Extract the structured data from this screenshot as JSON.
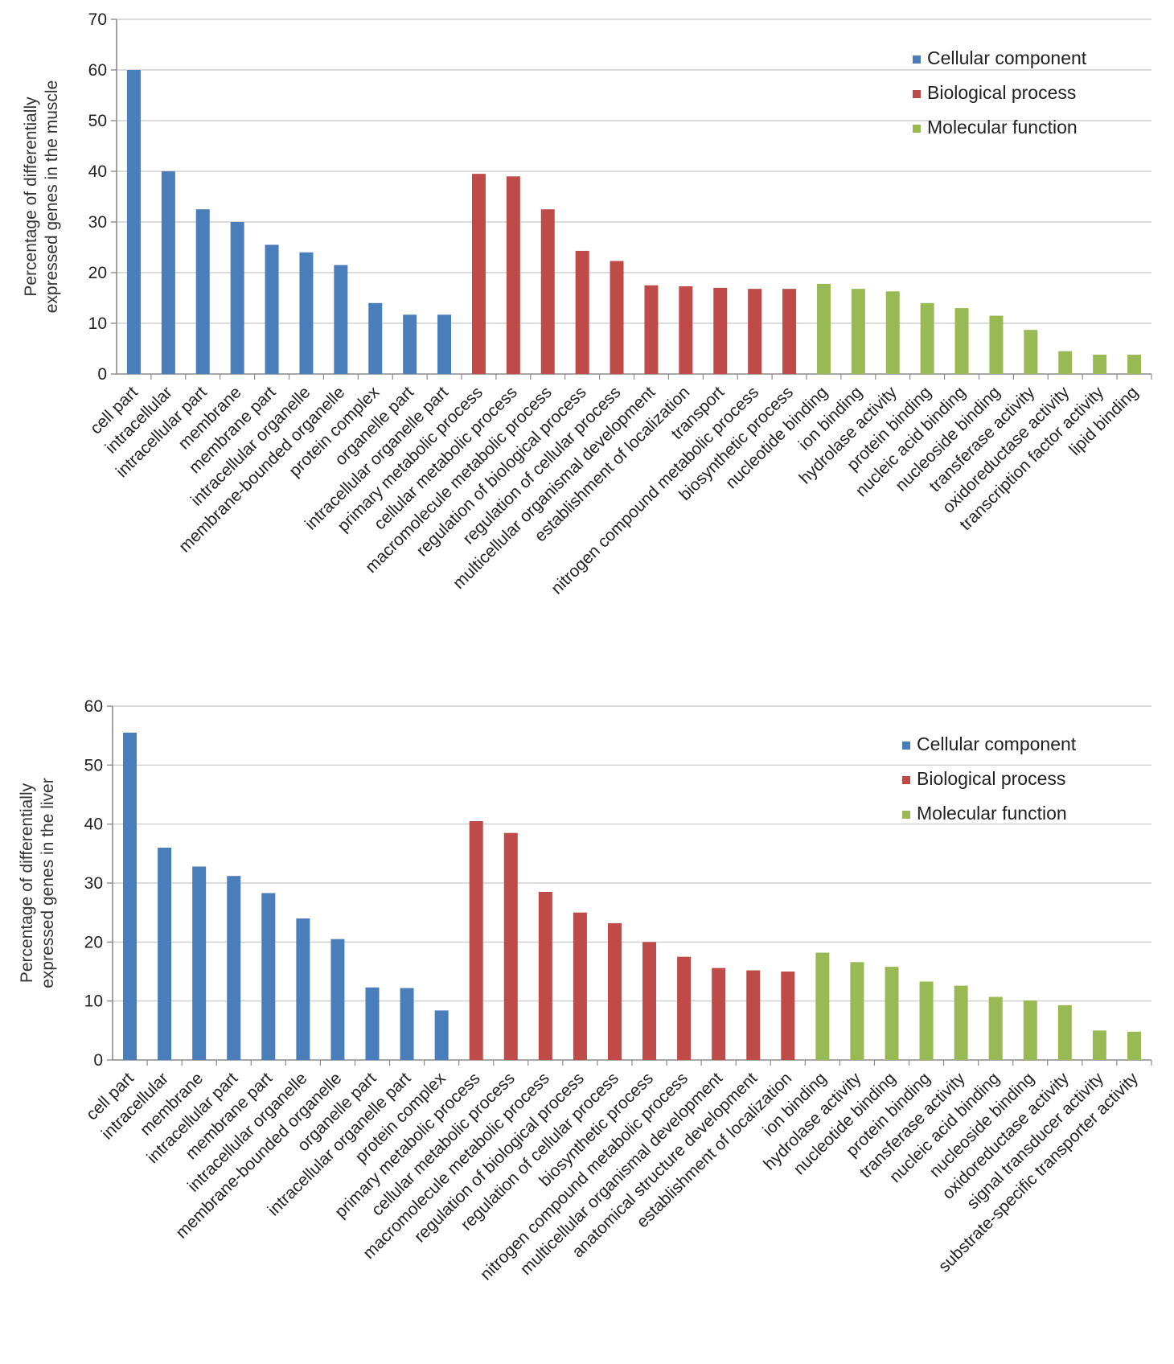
{
  "colors": {
    "cellular": "#4a7ebb",
    "biological": "#be4b48",
    "molecular": "#98b954",
    "grid": "#c8c8c8",
    "axis": "#8c8c8c"
  },
  "chart_data": [
    {
      "type": "bar",
      "id": "muscle",
      "ylabel_lines": [
        "Percentage of differentially",
        "expressed genes in the muscle"
      ],
      "ylim": [
        0,
        70
      ],
      "yticks": [
        0,
        10,
        20,
        30,
        40,
        50,
        60,
        70
      ],
      "legend": [
        {
          "label": "Cellular component",
          "color_key": "cellular"
        },
        {
          "label": "Biological process",
          "color_key": "biological"
        },
        {
          "label": "Molecular function",
          "color_key": "molecular"
        }
      ],
      "legend_position": "top-right",
      "categories": [
        "cell part",
        "intracellular",
        "intracellular part",
        "membrane",
        "membrane part",
        "intracellular organelle",
        "membrane-bounded organelle",
        "protein complex",
        "organelle part",
        "intracellular organelle part",
        "primary metabolic process",
        "cellular metabolic process",
        "macromolecule metabolic process",
        "regulation of biological process",
        "regulation of cellular process",
        "multicellular organismal development",
        "establishment of localization",
        "transport",
        "nitrogen compound metabolic process",
        "biosynthetic process",
        "nucleotide binding",
        "ion binding",
        "hydrolase activity",
        "protein binding",
        "nucleic acid binding",
        "nucleoside binding",
        "transferase activity",
        "oxidoreductase activity",
        "transcription factor activity",
        "lipid binding"
      ],
      "values": [
        60,
        40,
        32.5,
        30,
        25.5,
        24,
        21.5,
        14,
        11.7,
        11.7,
        39.5,
        39,
        32.5,
        24.3,
        22.3,
        17.5,
        17.3,
        17,
        16.8,
        16.8,
        17.8,
        16.8,
        16.3,
        14,
        13,
        11.5,
        8.7,
        4.5,
        3.8,
        3.8
      ],
      "groups": [
        "cellular",
        "cellular",
        "cellular",
        "cellular",
        "cellular",
        "cellular",
        "cellular",
        "cellular",
        "cellular",
        "cellular",
        "biological",
        "biological",
        "biological",
        "biological",
        "biological",
        "biological",
        "biological",
        "biological",
        "biological",
        "biological",
        "molecular",
        "molecular",
        "molecular",
        "molecular",
        "molecular",
        "molecular",
        "molecular",
        "molecular",
        "molecular",
        "molecular"
      ]
    },
    {
      "type": "bar",
      "id": "liver",
      "ylabel_lines": [
        "Percentage of differentially",
        "expressed genes in the liver"
      ],
      "ylim": [
        0,
        60
      ],
      "yticks": [
        0,
        10,
        20,
        30,
        40,
        50,
        60
      ],
      "legend": [
        {
          "label": "Cellular component",
          "color_key": "cellular"
        },
        {
          "label": "Biological process",
          "color_key": "biological"
        },
        {
          "label": "Molecular function",
          "color_key": "molecular"
        }
      ],
      "legend_position": "top-right",
      "categories": [
        "cell part",
        "intracellular",
        "membrane",
        "intracellular part",
        "membrane part",
        "intracellular organelle",
        "membrane-bounded organelle",
        "organelle part",
        "intracellular organelle part",
        "protein complex",
        "primary metabolic process",
        "cellular metabolic process",
        "macromolecule metabolic process",
        "regulation of biological process",
        "regulation of cellular process",
        "biosynthetic process",
        "nitrogen compound metabolic process",
        "multicellular organismal development",
        "anatomical structure development",
        "establishment of localization",
        "ion binding",
        "hydrolase activity",
        "nucleotide binding",
        "protein binding",
        "transferase activity",
        "nucleic acid binding",
        "nucleoside binding",
        "oxidoreductase activity",
        "signal transducer activity",
        "substrate-specific transporter activity"
      ],
      "values": [
        55.5,
        36,
        32.8,
        31.2,
        28.3,
        24,
        20.5,
        12.3,
        12.2,
        8.4,
        40.5,
        38.5,
        28.5,
        25,
        23.2,
        20,
        17.5,
        15.6,
        15.2,
        15,
        18.2,
        16.6,
        15.8,
        13.3,
        12.6,
        10.7,
        10.1,
        9.3,
        5,
        4.8
      ],
      "groups": [
        "cellular",
        "cellular",
        "cellular",
        "cellular",
        "cellular",
        "cellular",
        "cellular",
        "cellular",
        "cellular",
        "cellular",
        "biological",
        "biological",
        "biological",
        "biological",
        "biological",
        "biological",
        "biological",
        "biological",
        "biological",
        "biological",
        "molecular",
        "molecular",
        "molecular",
        "molecular",
        "molecular",
        "molecular",
        "molecular",
        "molecular",
        "molecular",
        "molecular"
      ]
    }
  ]
}
